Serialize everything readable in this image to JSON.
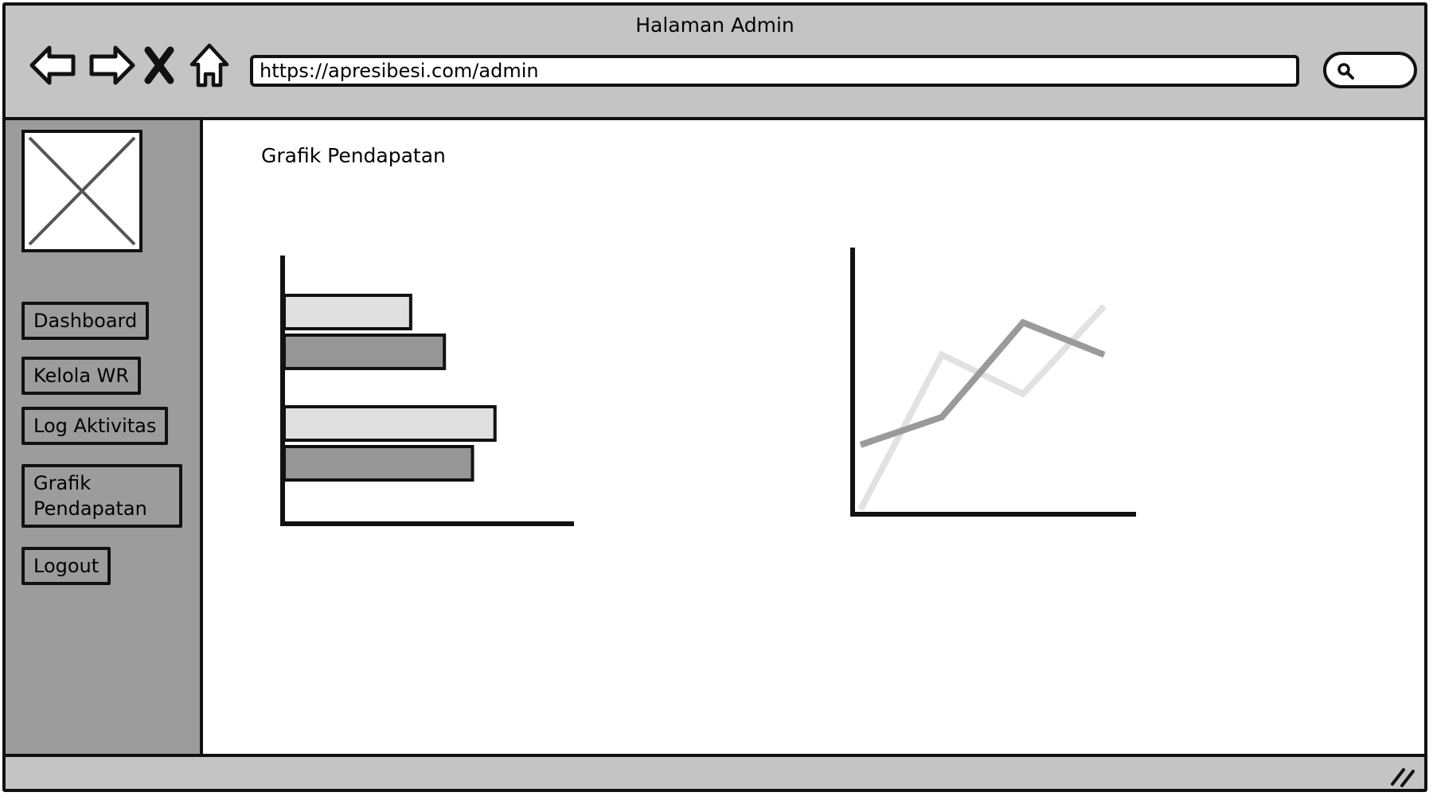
{
  "window": {
    "title": "Halaman Admin"
  },
  "toolbar": {
    "url": "https://apresibesi.com/admin",
    "icons": [
      "back-arrow-icon",
      "forward-arrow-icon",
      "close-x-icon",
      "home-icon",
      "search-icon"
    ]
  },
  "sidebar": {
    "logo_icon": "image-placeholder-icon",
    "items": [
      {
        "label": "Dashboard"
      },
      {
        "label": "Kelola WR"
      },
      {
        "label": "Log Aktivitas"
      },
      {
        "label": "Grafik Pendapatan"
      },
      {
        "label": "Logout"
      }
    ]
  },
  "main": {
    "title": "Grafik Pendapatan"
  },
  "colors": {
    "chrome": "#c4c4c4",
    "sidebar": "#9c9c9c",
    "light_series": "#e0e0e0",
    "dark_series": "#9a9a9a"
  },
  "chart_data": [
    {
      "type": "bar",
      "orientation": "horizontal",
      "categories": [
        "",
        ""
      ],
      "series": [
        {
          "values": [
            0.45,
            0.75
          ],
          "color": "#e0e0e0"
        },
        {
          "values": [
            0.57,
            0.67
          ],
          "color": "#969696"
        }
      ],
      "xlim": [
        0,
        1
      ]
    },
    {
      "type": "line",
      "x": [
        0,
        1,
        2,
        3
      ],
      "series": [
        {
          "values": [
            0.0,
            0.67,
            0.5,
            0.88
          ],
          "color": "#e2e2e2"
        },
        {
          "values": [
            0.28,
            0.4,
            0.81,
            0.67
          ],
          "color": "#9a9a9a"
        }
      ],
      "ylim": [
        0,
        1
      ]
    }
  ]
}
